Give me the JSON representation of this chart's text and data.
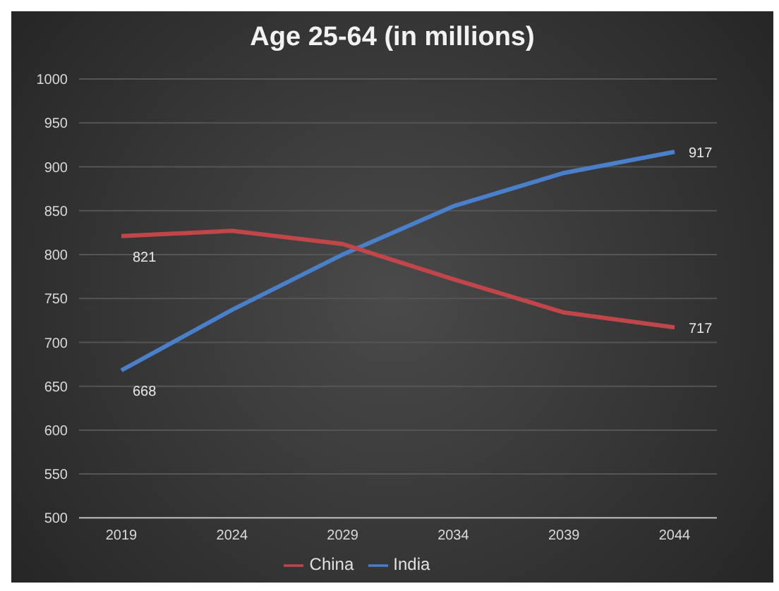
{
  "chart_data": {
    "type": "line",
    "title": "Age 25-64 (in millions)",
    "categories": [
      "2019",
      "2024",
      "2029",
      "2034",
      "2039",
      "2044"
    ],
    "series": [
      {
        "name": "India",
        "color": "#4a7fc9",
        "values": [
          668,
          737,
          800,
          855,
          893,
          917
        ],
        "value_labels": [
          "668",
          null,
          null,
          null,
          null,
          "917"
        ]
      },
      {
        "name": "China",
        "color": "#c0464a",
        "values": [
          821,
          827,
          812,
          772,
          734,
          717
        ],
        "value_labels": [
          "821",
          null,
          null,
          null,
          null,
          "717"
        ]
      }
    ],
    "ylim": [
      500,
      1000
    ],
    "yticks": [
      500,
      550,
      600,
      650,
      700,
      750,
      800,
      850,
      900,
      950,
      1000
    ],
    "grid": "y",
    "legend": "bottom",
    "marker": "none",
    "line_style": "solid"
  }
}
